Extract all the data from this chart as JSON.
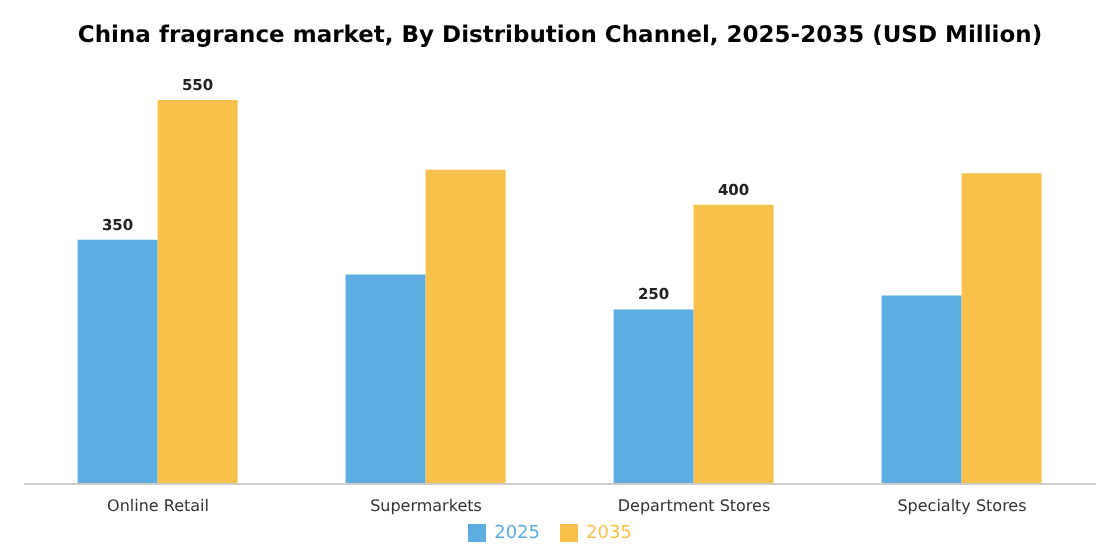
{
  "chart_data": {
    "type": "bar",
    "title": "China fragrance market, By Distribution Channel, 2025-2035 (USD Million)",
    "categories": [
      "Online Retail",
      "Supermarkets",
      "Department Stores",
      "Specialty Stores"
    ],
    "series": [
      {
        "name": "2025",
        "color": "#5dade2",
        "values": [
          350,
          300,
          250,
          270
        ],
        "value_labels": [
          "350",
          null,
          "250",
          null
        ]
      },
      {
        "name": "2035",
        "color": "#f7c04a",
        "values": [
          550,
          450,
          400,
          445
        ],
        "value_labels": [
          "550",
          null,
          "400",
          null
        ]
      }
    ],
    "legend": "bottom",
    "grid": false
  }
}
